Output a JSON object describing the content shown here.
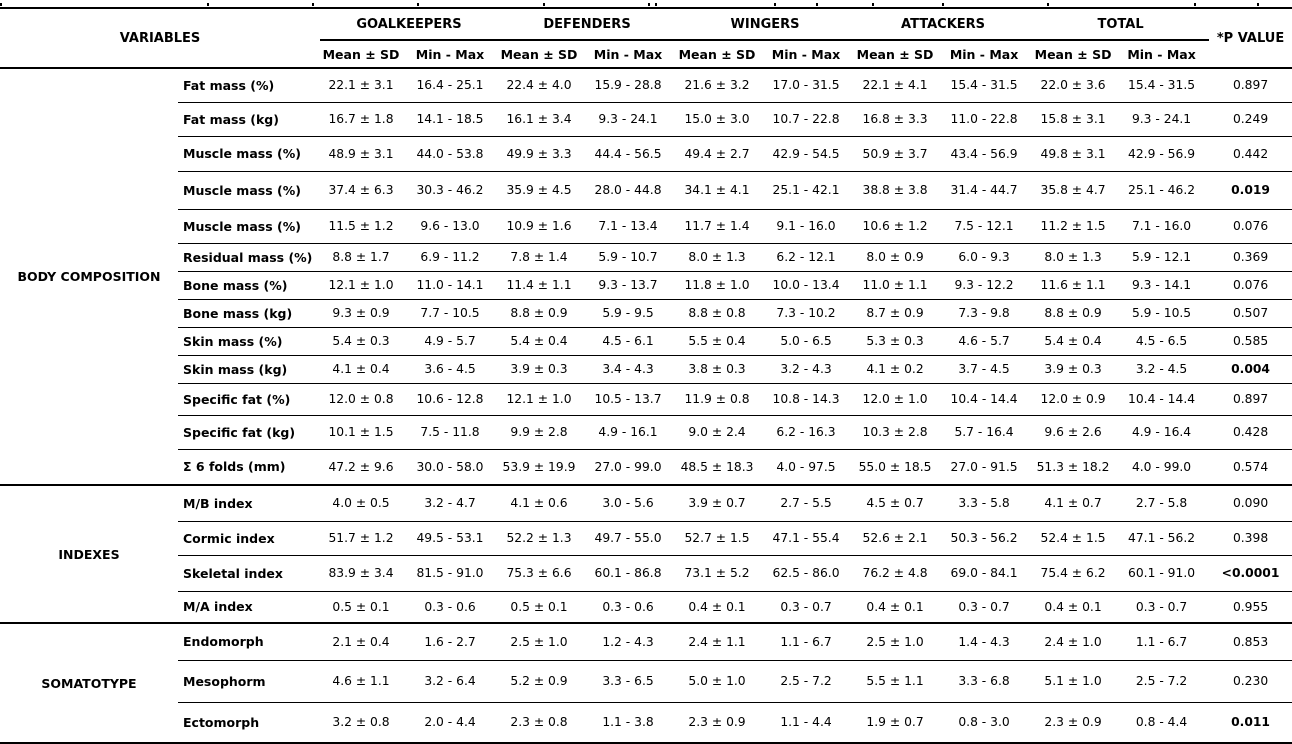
{
  "table": {
    "header": {
      "variables_label": "VARIABLES",
      "groups": [
        "GOALKEEPERS",
        "DEFENDERS",
        "WINGERS",
        "ATTACKERS",
        "TOTAL"
      ],
      "sub_mean": "Mean ± SD",
      "sub_minmax": "Min - Max",
      "p_label": "*P VALUE"
    },
    "sections": [
      {
        "name": "BODY COMPOSITION",
        "rows": [
          {
            "label": "Fat mass (%)",
            "values": [
              "22.1 ± 3.1",
              "16.4 - 25.1",
              "22.4 ± 4.0",
              "15.9 - 28.8",
              "21.6 ± 3.2",
              "17.0 - 31.5",
              "22.1 ± 4.1",
              "15.4 - 31.5",
              "22.0 ± 3.6",
              "15.4 - 31.5"
            ],
            "p": "0.897",
            "p_bold": false
          },
          {
            "label": "Fat mass (kg)",
            "values": [
              "16.7 ± 1.8",
              "14.1 - 18.5",
              "16.1 ± 3.4",
              "9.3 - 24.1",
              "15.0 ± 3.0",
              "10.7 - 22.8",
              "16.8 ± 3.3",
              "11.0 - 22.8",
              "15.8 ± 3.1",
              "9.3 - 24.1"
            ],
            "p": "0.249",
            "p_bold": false
          },
          {
            "label": "Muscle mass (%)",
            "values": [
              "48.9 ± 3.1",
              "44.0 - 53.8",
              "49.9 ± 3.3",
              "44.4 - 56.5",
              "49.4 ± 2.7",
              "42.9 - 54.5",
              "50.9 ± 3.7",
              "43.4 - 56.9",
              "49.8 ± 3.1",
              "42.9 - 56.9"
            ],
            "p": "0.442",
            "p_bold": false
          },
          {
            "label": "Muscle mass (%)",
            "values": [
              "37.4 ± 6.3",
              "30.3 - 46.2",
              "35.9 ± 4.5",
              "28.0 - 44.8",
              "34.1 ± 4.1",
              "25.1 - 42.1",
              "38.8 ± 3.8",
              "31.4 - 44.7",
              "35.8 ± 4.7",
              "25.1 - 46.2"
            ],
            "p": "0.019",
            "p_bold": true
          },
          {
            "label": "Muscle mass (%)",
            "values": [
              "11.5 ± 1.2",
              "9.6 - 13.0",
              "10.9 ± 1.6",
              "7.1 - 13.4",
              "11.7 ± 1.4",
              "9.1 - 16.0",
              "10.6 ± 1.2",
              "7.5 - 12.1",
              "11.2 ± 1.5",
              "7.1 - 16.0"
            ],
            "p": "0.076",
            "p_bold": false
          },
          {
            "label": "Residual mass (%)",
            "values": [
              "8.8 ± 1.7",
              "6.9 - 11.2",
              "7.8 ± 1.4",
              "5.9 - 10.7",
              "8.0 ± 1.3",
              "6.2 - 12.1",
              "8.0 ± 0.9",
              "6.0 - 9.3",
              "8.0 ± 1.3",
              "5.9 - 12.1"
            ],
            "p": "0.369",
            "p_bold": false
          },
          {
            "label": "Bone mass (%)",
            "values": [
              "12.1 ± 1.0",
              "11.0 - 14.1",
              "11.4 ± 1.1",
              "9.3 - 13.7",
              "11.8 ± 1.0",
              "10.0 - 13.4",
              "11.0 ± 1.1",
              "9.3 - 12.2",
              "11.6 ± 1.1",
              "9.3 - 14.1"
            ],
            "p": "0.076",
            "p_bold": false
          },
          {
            "label": "Bone mass (kg)",
            "values": [
              "9.3 ± 0.9",
              "7.7 - 10.5",
              "8.8 ± 0.9",
              "5.9 - 9.5",
              "8.8 ± 0.8",
              "7.3 - 10.2",
              "8.7 ± 0.9",
              "7.3 - 9.8",
              "8.8 ± 0.9",
              "5.9 - 10.5"
            ],
            "p": "0.507",
            "p_bold": false
          },
          {
            "label": "Skin mass (%)",
            "values": [
              "5.4 ± 0.3",
              "4.9 - 5.7",
              "5.4 ± 0.4",
              "4.5 - 6.1",
              "5.5 ± 0.4",
              "5.0 - 6.5",
              "5.3 ± 0.3",
              "4.6 - 5.7",
              "5.4 ± 0.4",
              "4.5 - 6.5"
            ],
            "p": "0.585",
            "p_bold": false
          },
          {
            "label": "Skin mass (kg)",
            "values": [
              "4.1 ± 0.4",
              "3.6 - 4.5",
              "3.9 ± 0.3",
              "3.4 - 4.3",
              "3.8 ± 0.3",
              "3.2 - 4.3",
              "4.1 ± 0.2",
              "3.7 - 4.5",
              "3.9 ± 0.3",
              "3.2 - 4.5"
            ],
            "p": "0.004",
            "p_bold": true
          },
          {
            "label": "Specific fat (%)",
            "values": [
              "12.0 ± 0.8",
              "10.6 - 12.8",
              "12.1 ± 1.0",
              "10.5 - 13.7",
              "11.9 ± 0.8",
              "10.8 - 14.3",
              "12.0 ± 1.0",
              "10.4 - 14.4",
              "12.0 ± 0.9",
              "10.4 - 14.4"
            ],
            "p": "0.897",
            "p_bold": false
          },
          {
            "label": "Specific fat (kg)",
            "values": [
              "10.1 ± 1.5",
              "7.5 - 11.8",
              "9.9 ± 2.8",
              "4.9 - 16.1",
              "9.0 ± 2.4",
              "6.2 - 16.3",
              "10.3 ± 2.8",
              "5.7 - 16.4",
              "9.6 ± 2.6",
              "4.9 - 16.4"
            ],
            "p": "0.428",
            "p_bold": false
          },
          {
            "label": "Σ 6 folds (mm)",
            "values": [
              "47.2 ± 9.6",
              "30.0 - 58.0",
              "53.9 ± 19.9",
              "27.0 - 99.0",
              "48.5 ± 18.3",
              "4.0 - 97.5",
              "55.0 ± 18.5",
              "27.0 - 91.5",
              "51.3 ± 18.2",
              "4.0 - 99.0"
            ],
            "p": "0.574",
            "p_bold": false
          }
        ]
      },
      {
        "name": "INDEXES",
        "rows": [
          {
            "label": "M/B index",
            "values": [
              "4.0 ± 0.5",
              "3.2 - 4.7",
              "4.1 ± 0.6",
              "3.0 - 5.6",
              "3.9 ± 0.7",
              "2.7 - 5.5",
              "4.5 ± 0.7",
              "3.3 - 5.8",
              "4.1 ± 0.7",
              "2.7 - 5.8"
            ],
            "p": "0.090",
            "p_bold": false
          },
          {
            "label": "Cormic index",
            "values": [
              "51.7 ± 1.2",
              "49.5 - 53.1",
              "52.2 ± 1.3",
              "49.7 - 55.0",
              "52.7 ± 1.5",
              "47.1 - 55.4",
              "52.6 ± 2.1",
              "50.3 - 56.2",
              "52.4 ± 1.5",
              "47.1 - 56.2"
            ],
            "p": "0.398",
            "p_bold": false
          },
          {
            "label": "Skeletal index",
            "values": [
              "83.9 ± 3.4",
              "81.5 - 91.0",
              "75.3 ± 6.6",
              "60.1 - 86.8",
              "73.1 ± 5.2",
              "62.5 - 86.0",
              "76.2 ± 4.8",
              "69.0 - 84.1",
              "75.4 ± 6.2",
              "60.1 - 91.0"
            ],
            "p": "<0.0001",
            "p_bold": true
          },
          {
            "label": "M/A index",
            "values": [
              "0.5 ± 0.1",
              "0.3 - 0.6",
              "0.5 ± 0.1",
              "0.3 - 0.6",
              "0.4 ± 0.1",
              "0.3 - 0.7",
              "0.4 ± 0.1",
              "0.3 - 0.7",
              "0.4 ± 0.1",
              "0.3 - 0.7"
            ],
            "p": "0.955",
            "p_bold": false
          }
        ]
      },
      {
        "name": "SOMATOTYPE",
        "rows": [
          {
            "label": "Endomorph",
            "values": [
              "2.1 ± 0.4",
              "1.6 - 2.7",
              "2.5 ± 1.0",
              "1.2 - 4.3",
              "2.4 ± 1.1",
              "1.1 - 6.7",
              "2.5 ± 1.0",
              "1.4 - 4.3",
              "2.4 ± 1.0",
              "1.1 - 6.7"
            ],
            "p": "0.853",
            "p_bold": false
          },
          {
            "label": "Mesophorm",
            "values": [
              "4.6 ± 1.1",
              "3.2 - 6.4",
              "5.2 ± 0.9",
              "3.3 - 6.5",
              "5.0 ± 1.0",
              "2.5 - 7.2",
              "5.5 ± 1.1",
              "3.3 - 6.8",
              "5.1 ± 1.0",
              "2.5 - 7.2"
            ],
            "p": "0.230",
            "p_bold": false
          },
          {
            "label": "Ectomorph",
            "values": [
              "3.2 ± 0.8",
              "2.0 - 4.4",
              "2.3 ± 0.8",
              "1.1 - 3.8",
              "2.3 ± 0.9",
              "1.1 - 4.4",
              "1.9 ± 0.7",
              "0.8 - 3.0",
              "2.3 ± 0.9",
              "0.8 - 4.4"
            ],
            "p": "0.011",
            "p_bold": true
          }
        ]
      }
    ]
  }
}
